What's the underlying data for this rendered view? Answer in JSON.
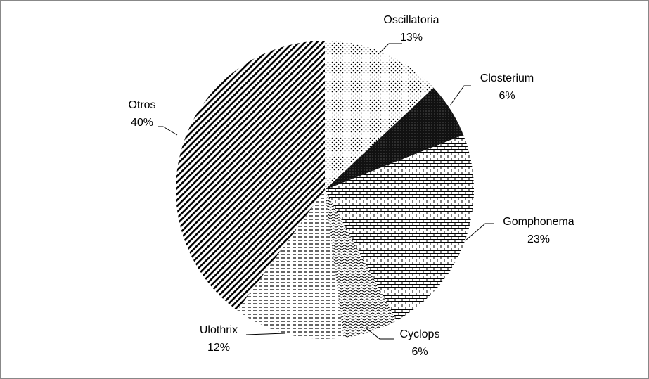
{
  "chart_data": {
    "type": "pie",
    "categories": [
      "Oscillatoria",
      "Closterium",
      "Gomphonema",
      "Cyclops",
      "Ulothrix",
      "Otros"
    ],
    "values": [
      13,
      6,
      23,
      6,
      12,
      40
    ],
    "value_labels": [
      "13%",
      "6%",
      "23%",
      "6%",
      "12%",
      "40%"
    ]
  }
}
